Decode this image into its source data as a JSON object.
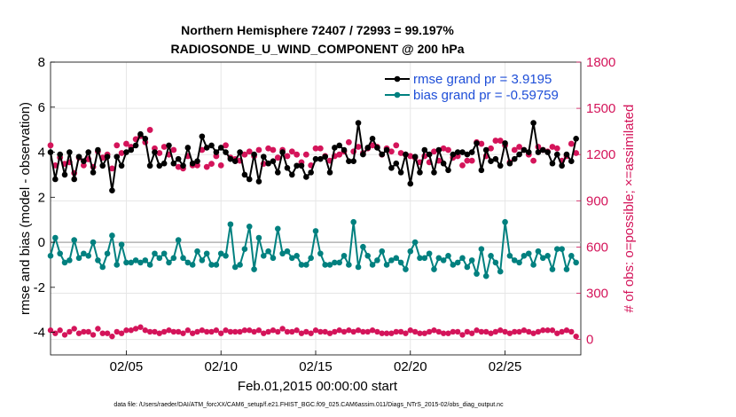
{
  "chart_data": {
    "type": "line",
    "title_line1": "Northern Hemisphere 72407 / 72993 = 99.197%",
    "title_line2": "RADIOSONDE_U_WIND_COMPONENT @ 200 hPa",
    "xlabel": "Feb.01,2015 00:00:00 start",
    "ylabel_left": "rmse and bias (model - observation)",
    "ylabel_right": "# of obs: o=possible; ×=assimilated",
    "xlim": [
      1,
      29
    ],
    "ylim_left": [
      -5,
      8
    ],
    "ylim_right": [
      -100,
      1800
    ],
    "x_ticks": [
      5,
      10,
      15,
      20,
      25
    ],
    "x_tick_labels": [
      "02/05",
      "02/10",
      "02/15",
      "02/20",
      "02/25"
    ],
    "y_left_ticks": [
      -4,
      -2,
      0,
      2,
      4,
      6,
      8
    ],
    "y_left_tick_labels": [
      "-4",
      "-2",
      "0",
      "2",
      "4",
      "6",
      "8"
    ],
    "y_right_ticks": [
      0,
      300,
      600,
      900,
      1200,
      1500,
      1800
    ],
    "y_right_tick_labels": [
      "0",
      "300",
      "600",
      "900",
      "1200",
      "1500",
      "1800"
    ],
    "colors": {
      "rmse": "#000000",
      "bias": "#00807f",
      "obs": "#d4145a",
      "grid": "#e6e6e6",
      "zero_line": "#b3b3b3",
      "legend_text": "#1f4fd8"
    },
    "legend": [
      {
        "name": "rmse",
        "label": "rmse grand pr = 3.9195"
      },
      {
        "name": "bias",
        "label": "bias grand pr = -0.59759"
      }
    ],
    "x": [
      1.0,
      1.25,
      1.5,
      1.75,
      2.0,
      2.25,
      2.5,
      2.75,
      3.0,
      3.25,
      3.5,
      3.75,
      4.0,
      4.25,
      4.5,
      4.75,
      5.0,
      5.25,
      5.5,
      5.75,
      6.0,
      6.25,
      6.5,
      6.75,
      7.0,
      7.25,
      7.5,
      7.75,
      8.0,
      8.25,
      8.5,
      8.75,
      9.0,
      9.25,
      9.5,
      9.75,
      10.0,
      10.25,
      10.5,
      10.75,
      11.0,
      11.25,
      11.5,
      11.75,
      12.0,
      12.25,
      12.5,
      12.75,
      13.0,
      13.25,
      13.5,
      13.75,
      14.0,
      14.25,
      14.5,
      14.75,
      15.0,
      15.25,
      15.5,
      15.75,
      16.0,
      16.25,
      16.5,
      16.75,
      17.0,
      17.25,
      17.5,
      17.75,
      18.0,
      18.25,
      18.5,
      18.75,
      19.0,
      19.25,
      19.5,
      19.75,
      20.0,
      20.25,
      20.5,
      20.75,
      21.0,
      21.25,
      21.5,
      21.75,
      22.0,
      22.25,
      22.5,
      22.75,
      23.0,
      23.25,
      23.5,
      23.75,
      24.0,
      24.25,
      24.5,
      24.75,
      25.0,
      25.25,
      25.5,
      25.75,
      26.0,
      26.25,
      26.5,
      26.75,
      27.0,
      27.25,
      27.5,
      27.75,
      28.0,
      28.25,
      28.5,
      28.75
    ],
    "rmse": [
      4.0,
      2.8,
      3.9,
      3.0,
      4.0,
      2.8,
      3.8,
      3.6,
      4.0,
      3.1,
      4.1,
      3.4,
      3.8,
      2.3,
      3.8,
      3.4,
      4.0,
      4.1,
      4.3,
      4.8,
      4.6,
      3.4,
      4.0,
      3.4,
      3.5,
      4.3,
      3.5,
      3.7,
      3.4,
      4.2,
      3.5,
      3.6,
      4.7,
      4.2,
      4.3,
      4.0,
      4.2,
      4.0,
      3.7,
      3.6,
      4.0,
      3.0,
      2.8,
      3.9,
      2.7,
      3.8,
      3.5,
      3.6,
      3.1,
      4.0,
      3.3,
      3.0,
      3.4,
      3.4,
      2.9,
      3.1,
      3.7,
      3.7,
      3.8,
      3.1,
      4.2,
      4.3,
      4.1,
      3.6,
      3.6,
      5.3,
      3.9,
      4.2,
      4.6,
      4.2,
      3.9,
      4.1,
      3.3,
      3.5,
      3.1,
      3.9,
      2.6,
      3.8,
      3.1,
      4.1,
      3.9,
      3.1,
      4.1,
      3.5,
      3.2,
      3.9,
      4.0,
      4.0,
      3.9,
      4.0,
      4.4,
      3.2,
      4.1,
      3.6,
      3.7,
      3.4,
      4.4,
      3.5,
      3.7,
      3.9,
      4.1,
      4.0,
      5.3,
      4.0,
      4.1,
      4.0,
      3.5,
      3.9,
      3.4,
      3.9,
      3.6,
      4.6
    ],
    "bias": [
      -0.6,
      0.2,
      -0.5,
      -0.9,
      -0.8,
      0.1,
      -0.7,
      -0.5,
      -0.6,
      0.0,
      -0.8,
      -1.1,
      -0.5,
      0.3,
      -1.0,
      -0.1,
      -0.9,
      -0.9,
      -0.8,
      -0.9,
      -0.8,
      -1.0,
      -0.5,
      -0.7,
      -0.5,
      -0.9,
      -0.7,
      0.1,
      -0.7,
      -0.9,
      -1.0,
      -0.4,
      -0.8,
      -0.5,
      -1.0,
      -1.0,
      -0.5,
      -0.6,
      0.8,
      -1.1,
      -1.0,
      -0.3,
      0.7,
      -1.2,
      0.2,
      -0.6,
      -0.4,
      -0.7,
      0.6,
      -0.5,
      -0.4,
      -0.7,
      -0.6,
      -1.0,
      -1.0,
      -0.7,
      0.5,
      -0.5,
      -1.0,
      -1.0,
      -0.9,
      -0.9,
      -0.6,
      -1.0,
      0.9,
      -1.1,
      -0.2,
      -0.6,
      -1.0,
      -0.8,
      -0.4,
      -1.0,
      -0.8,
      -0.7,
      -0.9,
      -1.2,
      -0.4,
      0.0,
      -0.7,
      -0.7,
      -0.5,
      -1.2,
      -0.7,
      -0.8,
      -0.6,
      -1.0,
      -0.9,
      -0.7,
      -1.1,
      -0.8,
      -1.4,
      -0.3,
      -1.5,
      -0.6,
      -0.9,
      -1.3,
      0.9,
      -0.6,
      -0.8,
      -0.9,
      -0.6,
      -0.5,
      -1.0,
      -0.4,
      -0.7,
      -0.6,
      -1.2,
      -0.3,
      -0.3,
      -1.2,
      -0.6,
      -0.9
    ],
    "obs_possible": [
      1260,
      1130,
      1180,
      1140,
      1150,
      1080,
      1180,
      1130,
      1170,
      1120,
      1220,
      1180,
      1200,
      1110,
      1260,
      1210,
      1270,
      1250,
      1300,
      1320,
      1280,
      1360,
      1240,
      1210,
      1250,
      1200,
      1230,
      1120,
      1110,
      1190,
      1130,
      1130,
      1230,
      1120,
      1140,
      1190,
      1130,
      1260,
      1180,
      1170,
      1160,
      1200,
      1220,
      1190,
      1230,
      1140,
      1240,
      1230,
      1180,
      1230,
      1190,
      1220,
      1200,
      1150,
      1200,
      1130,
      1240,
      1240,
      1190,
      1160,
      1190,
      1200,
      1220,
      1280,
      1220,
      1250,
      1210,
      1240,
      1260,
      1250,
      1200,
      1240,
      1220,
      1260,
      1210,
      1200,
      1190,
      1180,
      1150,
      1190,
      1150,
      1220,
      1160,
      1240,
      1230,
      1180,
      1190,
      1130,
      1160,
      1160,
      1280,
      1270,
      1190,
      1240,
      1290,
      1290,
      1260,
      1150,
      1230,
      1250,
      1230,
      1200,
      1160,
      1250,
      1230,
      1220,
      1250,
      1240,
      1160,
      1190,
      1270,
      1210
    ],
    "obs_assimilated": [
      60,
      40,
      60,
      30,
      50,
      70,
      40,
      50,
      50,
      30,
      70,
      40,
      40,
      20,
      50,
      40,
      60,
      60,
      70,
      80,
      60,
      50,
      50,
      40,
      50,
      60,
      50,
      50,
      40,
      60,
      40,
      50,
      60,
      50,
      50,
      60,
      40,
      60,
      50,
      50,
      50,
      60,
      60,
      50,
      60,
      40,
      50,
      60,
      50,
      70,
      50,
      50,
      60,
      40,
      50,
      40,
      60,
      50,
      50,
      40,
      50,
      60,
      50,
      60,
      50,
      60,
      50,
      50,
      60,
      50,
      40,
      40,
      40,
      50,
      50,
      40,
      60,
      50,
      40,
      40,
      50,
      60,
      50,
      40,
      40,
      50,
      50,
      30,
      50,
      40,
      60,
      50,
      50,
      40,
      50,
      60,
      50,
      40,
      50,
      50,
      60,
      50,
      40,
      50,
      60,
      60,
      60,
      40,
      50,
      60,
      50,
      20
    ],
    "footnote": "data file: /Users/raeder/DAI/ATM_forcXX/CAM6_setup/f.e21.FHIST_BGC.f09_025.CAM6assim.011/Diags_NTrS_2015-02/obs_diag_output.nc"
  }
}
